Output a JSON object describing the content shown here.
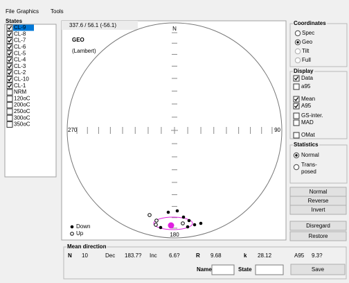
{
  "menu": [
    "File",
    "Graphics",
    "Tools"
  ],
  "states": {
    "title": "States",
    "items": [
      {
        "name": "CL-9",
        "checked": true,
        "selected": true
      },
      {
        "name": "CL-8",
        "checked": true,
        "selected": false
      },
      {
        "name": "CL-7",
        "checked": true,
        "selected": false
      },
      {
        "name": "CL-6",
        "checked": true,
        "selected": false
      },
      {
        "name": "CL-5",
        "checked": true,
        "selected": false
      },
      {
        "name": "CL-4",
        "checked": true,
        "selected": false
      },
      {
        "name": "CL-3",
        "checked": true,
        "selected": false
      },
      {
        "name": "CL-2",
        "checked": true,
        "selected": false
      },
      {
        "name": "CL-10",
        "checked": true,
        "selected": false
      },
      {
        "name": "CL-1",
        "checked": true,
        "selected": false
      },
      {
        "name": "NRM",
        "checked": false,
        "selected": false
      },
      {
        "name": "120oC",
        "checked": false,
        "selected": false
      },
      {
        "name": "200oC",
        "checked": false,
        "selected": false
      },
      {
        "name": "250oC",
        "checked": false,
        "selected": false
      },
      {
        "name": "300oC",
        "checked": false,
        "selected": false
      },
      {
        "name": "350oC",
        "checked": false,
        "selected": false
      }
    ]
  },
  "plot": {
    "readout": "337.6  /  56.1 (-56.1)",
    "system": "GEO",
    "projection": "(Lambert)",
    "north": "N",
    "east": "90",
    "south": "180",
    "west": "270",
    "legend": {
      "down": "Down",
      "up": "Up"
    }
  },
  "coordinates": {
    "title": "Coordinates",
    "options": [
      {
        "label": "Spec",
        "selected": false,
        "enabled": true
      },
      {
        "label": "Geo",
        "selected": true,
        "enabled": true
      },
      {
        "label": "Tilt",
        "selected": false,
        "enabled": false
      },
      {
        "label": "Full",
        "selected": false,
        "enabled": false
      }
    ]
  },
  "display": {
    "title": "Display",
    "options": [
      {
        "label": "Data",
        "checked": true,
        "color": "#000000"
      },
      {
        "label": "a95",
        "checked": false,
        "color": "#000000"
      },
      {
        "label": "Mean",
        "checked": true,
        "color": "#e020e0"
      },
      {
        "label": "A95",
        "checked": true,
        "color": "#e020e0"
      },
      {
        "label": "GS-inter.",
        "checked": false,
        "color": "#f08020"
      },
      {
        "label": "MAD",
        "checked": false,
        "color": "#f08020"
      },
      {
        "label": "OMat",
        "checked": false,
        "color": "#2040ff"
      }
    ]
  },
  "statistics": {
    "title": "Statistics",
    "options": [
      {
        "label": "Normal",
        "selected": true
      },
      {
        "label": "Trans-\nposed",
        "selected": false
      }
    ]
  },
  "buttons": [
    "Normal",
    "Reverse",
    "Invert",
    "Disregard",
    "Restore"
  ],
  "mean_direction": {
    "title": "Mean direction",
    "fields": [
      {
        "label": "N",
        "value": "10",
        "color": "#000000"
      },
      {
        "label": "Dec",
        "value": "183.7?",
        "color": "#e020e0"
      },
      {
        "label": "Inc",
        "value": "6.6?",
        "color": "#e020e0"
      },
      {
        "label": "R",
        "value": "9.68",
        "color": "#000000"
      },
      {
        "label": "k",
        "value": "28.12",
        "color": "#000000"
      },
      {
        "label": "A95",
        "value": "9.3?",
        "color": "#e020e0"
      }
    ],
    "name_label": "Name",
    "state_label": "State",
    "save": "Save"
  }
}
